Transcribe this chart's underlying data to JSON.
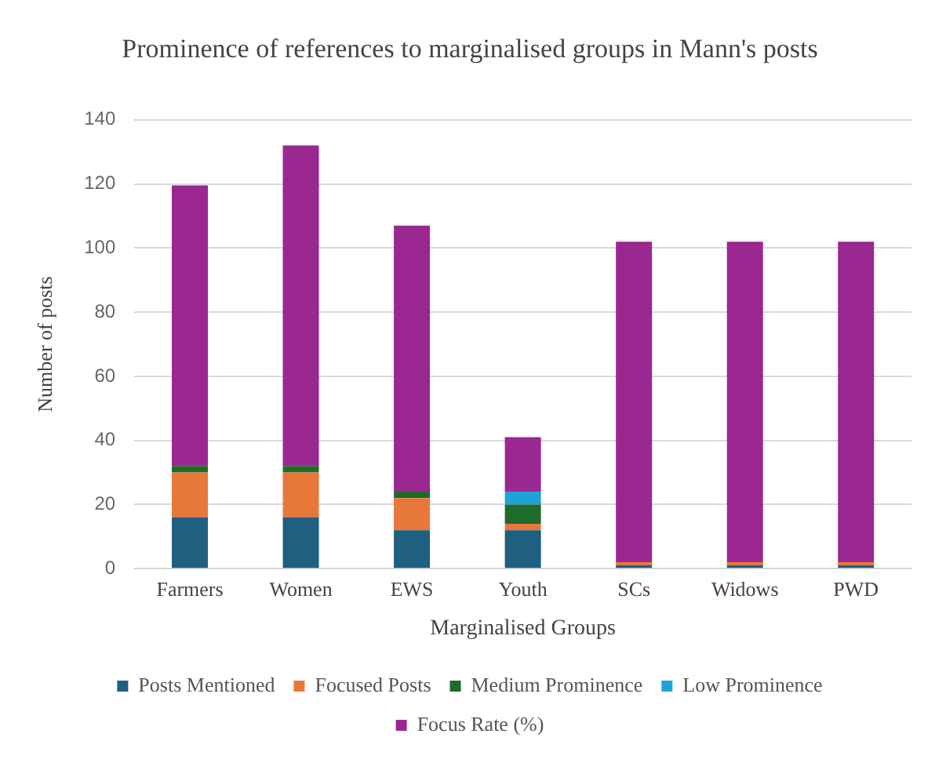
{
  "chart_data": {
    "type": "bar",
    "title": "Prominence of references to marginalised groups in Mann's posts",
    "xlabel": "Marginalised Groups",
    "ylabel": "Number of posts",
    "categories": [
      "Farmers",
      "Women",
      "EWS",
      "Youth",
      "SCs",
      "Widows",
      "PWD"
    ],
    "stacked": true,
    "series": [
      {
        "name": "Posts Mentioned",
        "color": "#1f5f7f",
        "values": [
          16,
          16,
          12,
          12,
          1,
          1,
          1
        ]
      },
      {
        "name": "Focused Posts",
        "color": "#e8773a",
        "values": [
          14,
          14,
          10,
          2,
          1,
          1,
          1
        ]
      },
      {
        "name": "Medium Prominence",
        "color": "#1e6b2a",
        "values": [
          2,
          2,
          2,
          6,
          0,
          0,
          0
        ]
      },
      {
        "name": "Low Prominence",
        "color": "#1fa3d6",
        "values": [
          0,
          0,
          0,
          4,
          0,
          0,
          0
        ]
      },
      {
        "name": "Focus Rate (%)",
        "color": "#9b2790",
        "values": [
          87.5,
          100,
          83,
          17,
          100,
          100,
          100
        ]
      }
    ],
    "ylim": [
      0,
      140
    ],
    "yticks": [
      0,
      20,
      40,
      60,
      80,
      100,
      120,
      140
    ],
    "grid": "y",
    "legend": "bottom"
  }
}
